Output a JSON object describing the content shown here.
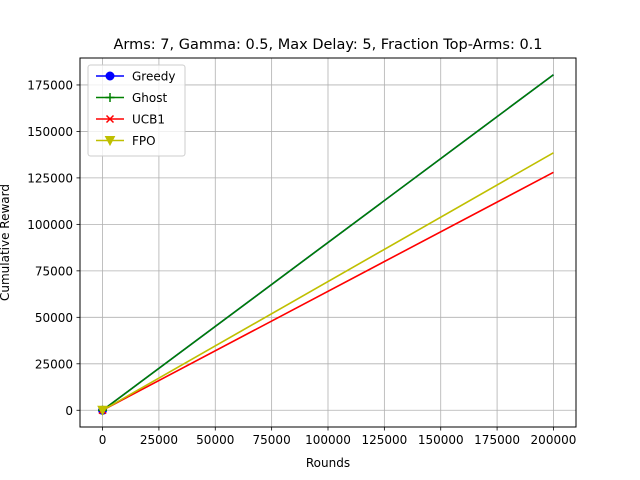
{
  "chart_data": {
    "type": "line",
    "title": "Arms: 7, Gamma: 0.5, Max Delay: 5, Fraction Top-Arms: 0.1",
    "xlabel": "Rounds",
    "ylabel": "Cumulative Reward",
    "xlim": [
      -10000,
      210000
    ],
    "ylim": [
      -9000,
      189500
    ],
    "xticks": [
      0,
      25000,
      50000,
      75000,
      100000,
      125000,
      150000,
      175000,
      200000
    ],
    "yticks": [
      0,
      25000,
      50000,
      75000,
      100000,
      125000,
      150000,
      175000
    ],
    "grid": true,
    "legend_position": "upper-left",
    "series": [
      {
        "name": "Greedy",
        "color": "#0000ff",
        "marker": "circle",
        "x": [
          0,
          200000
        ],
        "y": [
          0,
          180500
        ]
      },
      {
        "name": "Ghost",
        "color": "#008000",
        "marker": "plus",
        "x": [
          0,
          200000
        ],
        "y": [
          0,
          180500
        ]
      },
      {
        "name": "UCB1",
        "color": "#ff0000",
        "marker": "x",
        "x": [
          0,
          200000
        ],
        "y": [
          0,
          128000
        ]
      },
      {
        "name": "FPO",
        "color": "#bfbf00",
        "marker": "triangle-down",
        "x": [
          0,
          200000
        ],
        "y": [
          0,
          138500
        ]
      }
    ]
  }
}
